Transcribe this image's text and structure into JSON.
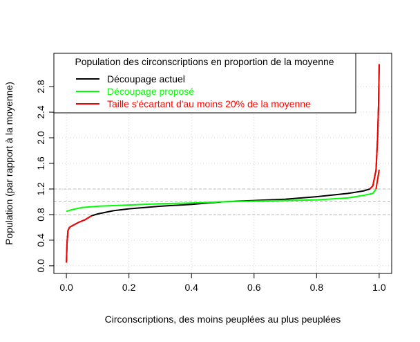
{
  "chart_data": {
    "type": "line",
    "xlabel": "Circonscriptions, des moins peuplées au plus peuplées",
    "ylabel": "Population (par rapport à la moyenne)",
    "legend_title": "Population des circonscriptions en proportion de la moyenne",
    "legend": "topleft",
    "grid": true,
    "xlim": [
      -0.04,
      1.04
    ],
    "ylim": [
      -0.12,
      3.32
    ],
    "xticks": [
      {
        "value": 0,
        "label": "0.0"
      },
      0.2,
      0.4,
      0.6,
      0.8,
      {
        "value": 1,
        "label": "1.0"
      }
    ],
    "yticks": [
      {
        "value": 0,
        "label": "0.0"
      },
      0.4,
      0.8,
      1.2,
      1.6,
      {
        "value": 2,
        "label": "2.0"
      },
      2.4,
      2.8
    ],
    "hlines": [
      0.8,
      1,
      1.2
    ],
    "series": [
      {
        "name": "Découpage actuel",
        "color": "#000000",
        "x": [
          0,
          0.002,
          0.005,
          0.01,
          0.02,
          0.04,
          0.06,
          0.08,
          0.1,
          0.15,
          0.2,
          0.3,
          0.4,
          0.5,
          0.6,
          0.7,
          0.8,
          0.9,
          0.95,
          0.97,
          0.98,
          0.99,
          0.995,
          0.998,
          1
        ],
        "values": [
          0.05,
          0.35,
          0.55,
          0.6,
          0.63,
          0.68,
          0.72,
          0.78,
          0.81,
          0.86,
          0.89,
          0.93,
          0.96,
          1,
          1.02,
          1.04,
          1.08,
          1.13,
          1.17,
          1.2,
          1.25,
          1.5,
          2,
          2.5,
          3.15
        ]
      },
      {
        "name": "Découpage proposé",
        "color": "#00ff00",
        "x": [
          0,
          0.02,
          0.05,
          0.1,
          0.2,
          0.3,
          0.4,
          0.5,
          0.6,
          0.7,
          0.8,
          0.9,
          0.95,
          0.98,
          0.99,
          1
        ],
        "values": [
          0.85,
          0.88,
          0.91,
          0.93,
          0.95,
          0.97,
          0.98,
          1,
          1.01,
          1.02,
          1.03,
          1.06,
          1.1,
          1.13,
          1.2,
          1.5
        ]
      },
      {
        "name": "Taille s'écartant d'au moins 20% de la moyenne",
        "color": "#ff0000",
        "x": [
          0,
          0.002,
          0.005,
          0.01,
          0.02,
          0.04,
          0.06,
          0.08,
          null,
          0.97,
          0.98,
          0.99,
          0.995,
          0.998,
          1,
          null,
          0.99,
          1
        ],
        "values": [
          0.05,
          0.35,
          0.55,
          0.6,
          0.63,
          0.68,
          0.72,
          0.78,
          null,
          1.2,
          1.25,
          1.5,
          2,
          2.5,
          3.15,
          null,
          1.2,
          1.5
        ]
      }
    ]
  }
}
